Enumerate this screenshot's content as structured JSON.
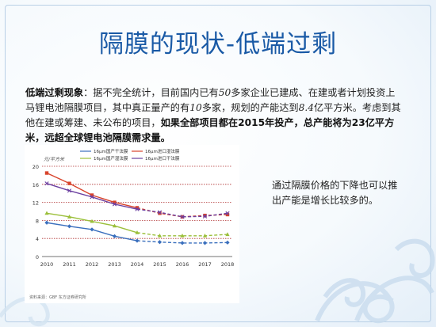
{
  "slide": {
    "title": "隔膜的现状-低端过剩",
    "paragraph": {
      "lead": "低端过剩现象",
      "p1": "：据不完全统计，目前国内已有",
      "n50": "50",
      "p2": "多家企业已建成、在建或者计划投资上马锂电池隔膜项目，其中真正量产的有",
      "n10": "10",
      "p3": "多家，规划的产能达到",
      "n84": "8.4",
      "p4": "亿平方米。考虑到其他在建或筹建、未公布的项目，",
      "bold_tail": "如果全部项目都在2015年投产，总产能将为23亿平方米，远超全球锂电池隔膜需求量。"
    },
    "side_note": "通过隔膜价格的下降也可以推出产能是增长比较多的。",
    "colors": {
      "title": "#1a5aa6",
      "accent_border": "#b8cfe6"
    }
  },
  "chart_data": {
    "type": "line",
    "title": "",
    "corner_label": "元/平方米",
    "source_note": "资料来源：GBF 东方证券研究所",
    "x": [
      "2010",
      "2011",
      "2012",
      "2013",
      "2014",
      "2015",
      "2016",
      "2017",
      "2018"
    ],
    "ylim": [
      0,
      20
    ],
    "yticks": [
      0,
      4,
      8,
      12,
      16,
      20
    ],
    "forecast_from_index": 4,
    "series": [
      {
        "name": "16μm国产干法膜",
        "color": "#3a6fbd",
        "marker": "diamond",
        "values": [
          7.5,
          6.7,
          6.0,
          4.5,
          3.5,
          3.2,
          3.0,
          3.0,
          3.1
        ]
      },
      {
        "name": "16μm进口湿法膜",
        "color": "#d8432b",
        "marker": "square",
        "values": [
          18.5,
          16.2,
          13.6,
          12.0,
          10.8,
          9.6,
          8.8,
          9.1,
          9.3
        ]
      },
      {
        "name": "16μm国产湿法膜",
        "color": "#9bbf3a",
        "marker": "triangle",
        "values": [
          9.6,
          8.8,
          7.8,
          6.8,
          5.3,
          4.6,
          4.6,
          4.6,
          4.9
        ]
      },
      {
        "name": "16μm进口干法膜",
        "color": "#6b3fa0",
        "marker": "x",
        "values": [
          16.2,
          14.6,
          13.2,
          11.6,
          10.5,
          9.8,
          8.8,
          8.9,
          9.6
        ]
      }
    ]
  }
}
